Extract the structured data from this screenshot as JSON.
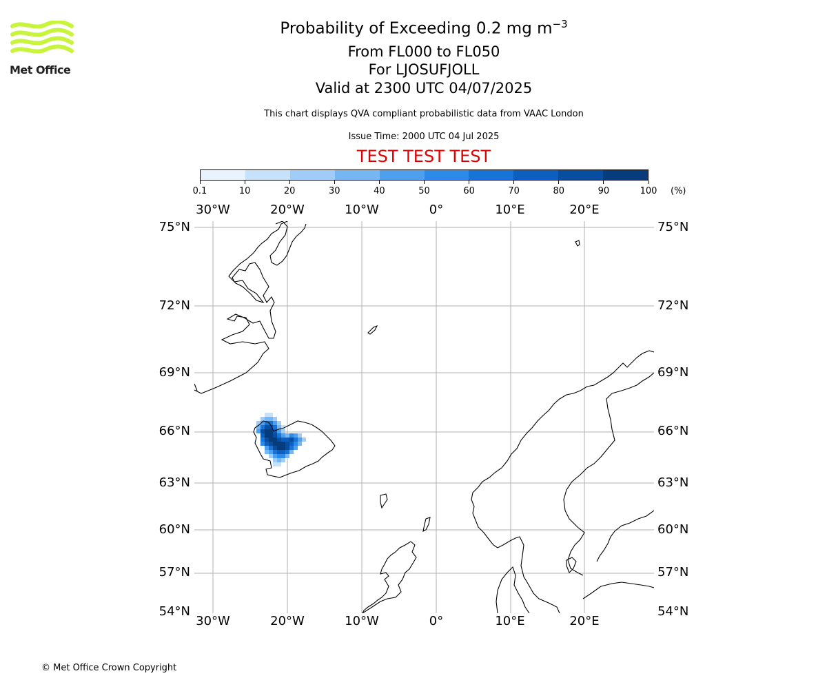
{
  "header": {
    "title_main": "Probability of Exceeding 0.2 mg m",
    "title_sup": "−3",
    "level_range": "From FL000 to FL050",
    "volcano": "For LJOSUFJOLL",
    "valid_time": "Valid at 2300 UTC 04/07/2025",
    "description": "This chart displays QVA compliant probabilistic data from VAAC London",
    "issue_time": "Issue Time: 2000 UTC 04 Jul 2025",
    "test_banner": "TEST TEST TEST"
  },
  "logo": {
    "text": "Met Office",
    "color": "#c8f53c"
  },
  "colorbar": {
    "labels": [
      "0.1",
      "10",
      "20",
      "30",
      "40",
      "50",
      "60",
      "70",
      "80",
      "90",
      "100"
    ],
    "unit": "(%)",
    "colors": [
      "#e8f3fe",
      "#c6e2fb",
      "#9fcdf8",
      "#75b6f3",
      "#4ea0ef",
      "#2e8ae8",
      "#1873d6",
      "#0c5fbf",
      "#084ea0",
      "#063b7c",
      "#042a59"
    ]
  },
  "map": {
    "lon_labels": [
      "30°W",
      "20°W",
      "10°W",
      "0°",
      "10°E",
      "20°E"
    ],
    "lat_labels": [
      "75°N",
      "72°N",
      "69°N",
      "66°N",
      "63°N",
      "60°N",
      "57°N",
      "54°N"
    ],
    "highlight_color": "#e00000"
  },
  "footer": {
    "copyright": "© Met Office Crown Copyright"
  }
}
